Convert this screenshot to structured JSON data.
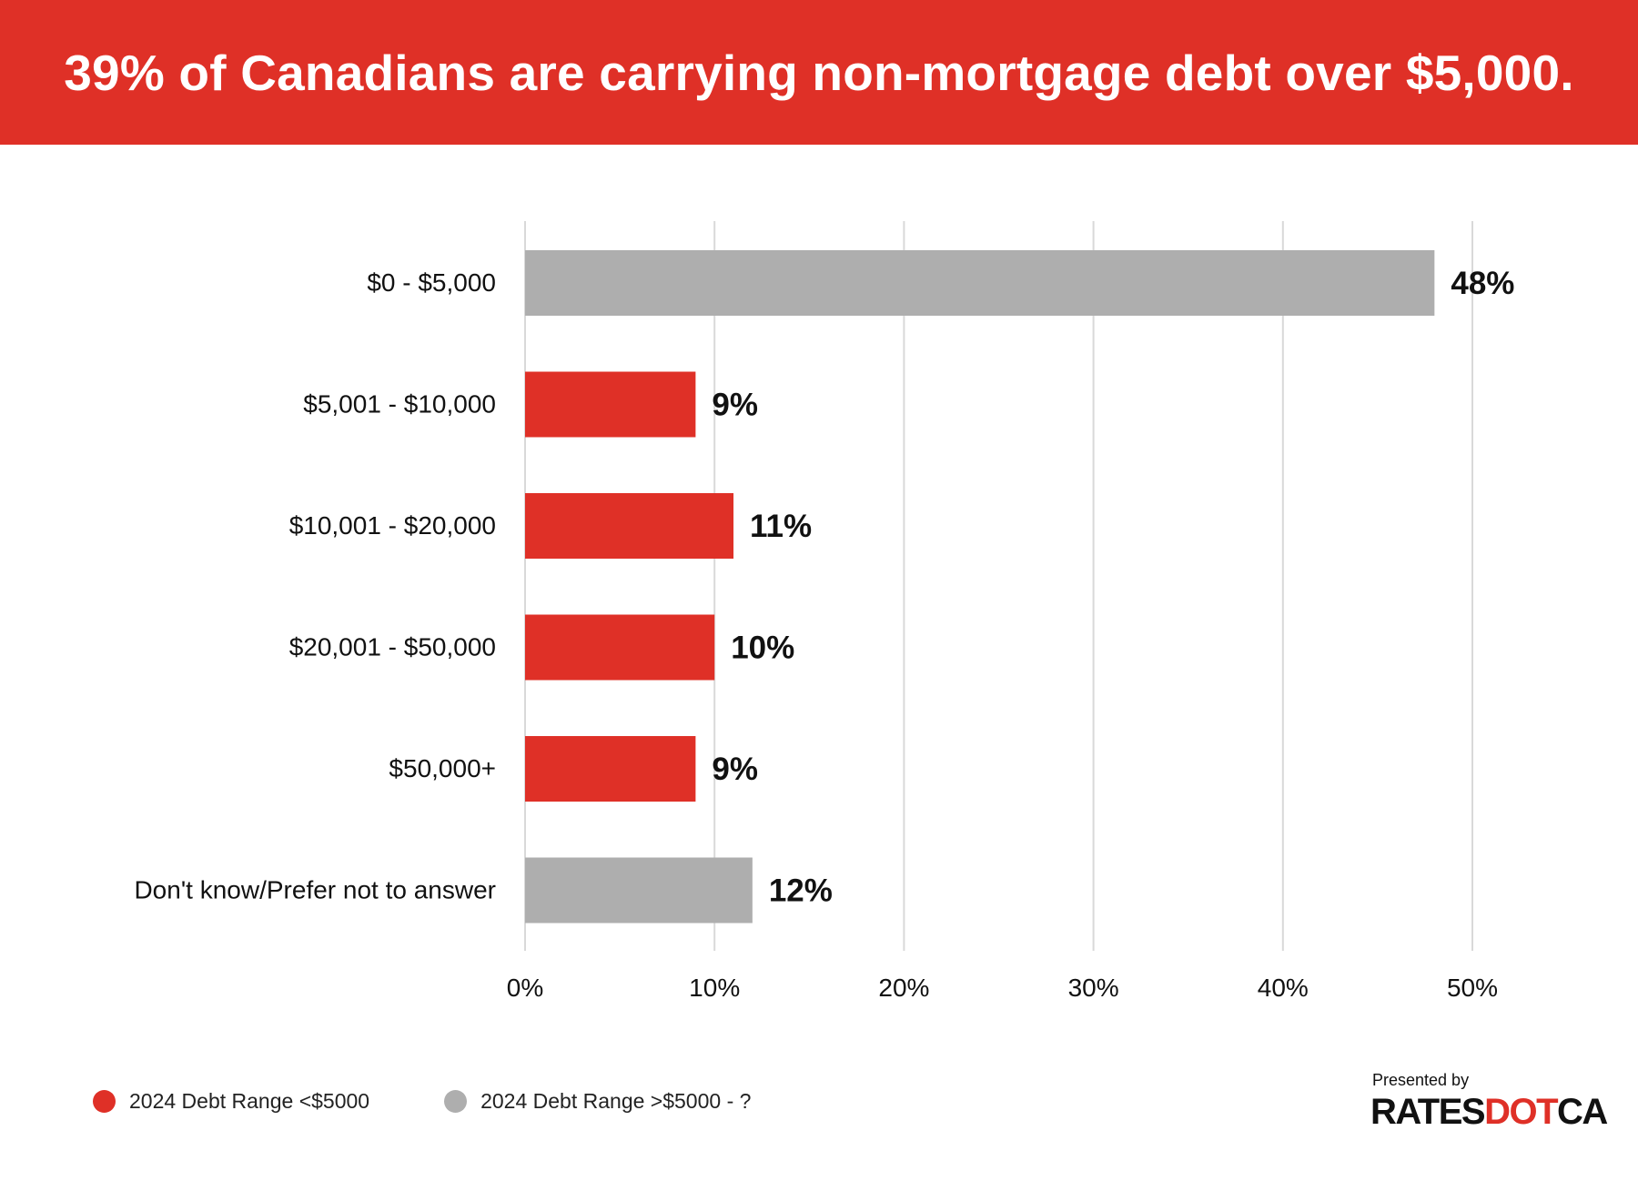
{
  "header": {
    "title": "39% of Canadians are carrying non-mortgage debt over $5,000."
  },
  "colors": {
    "banner": "#df3027",
    "red": "#df3027",
    "gray": "#aeaeae",
    "grid": "#d9d9d9"
  },
  "chart_data": {
    "type": "bar",
    "orientation": "horizontal",
    "categories": [
      "$0 - $5,000",
      "$5,001 - $10,000",
      "$10,001 - $20,000",
      "$20,001 - $50,000",
      "$50,000+",
      "Don't know/Prefer not to answer"
    ],
    "values": [
      48,
      9,
      11,
      10,
      9,
      12
    ],
    "value_labels": [
      "48%",
      "9%",
      "11%",
      "10%",
      "9%",
      "12%"
    ],
    "bar_series": [
      "gray",
      "red",
      "red",
      "red",
      "red",
      "gray"
    ],
    "xlim": [
      0,
      50
    ],
    "xticks": [
      0,
      10,
      20,
      30,
      40,
      50
    ],
    "xtick_labels": [
      "0%",
      "10%",
      "20%",
      "30%",
      "40%",
      "50%"
    ],
    "grid": true,
    "legend_position": "bottom-left",
    "series": [
      {
        "name": "2024 Debt Range <$5000",
        "color": "#df3027"
      },
      {
        "name": "2024 Debt Range >$5000 - ?",
        "color": "#aeaeae"
      }
    ]
  },
  "legend": {
    "items": [
      {
        "label": "2024 Debt Range <$5000",
        "color": "#df3027"
      },
      {
        "label": "2024 Debt Range >$5000 - ?",
        "color": "#aeaeae"
      }
    ]
  },
  "branding": {
    "presented_by": "Presented by",
    "logo_part1": "RATES",
    "logo_part2": "DOT",
    "logo_part3": "CA"
  }
}
